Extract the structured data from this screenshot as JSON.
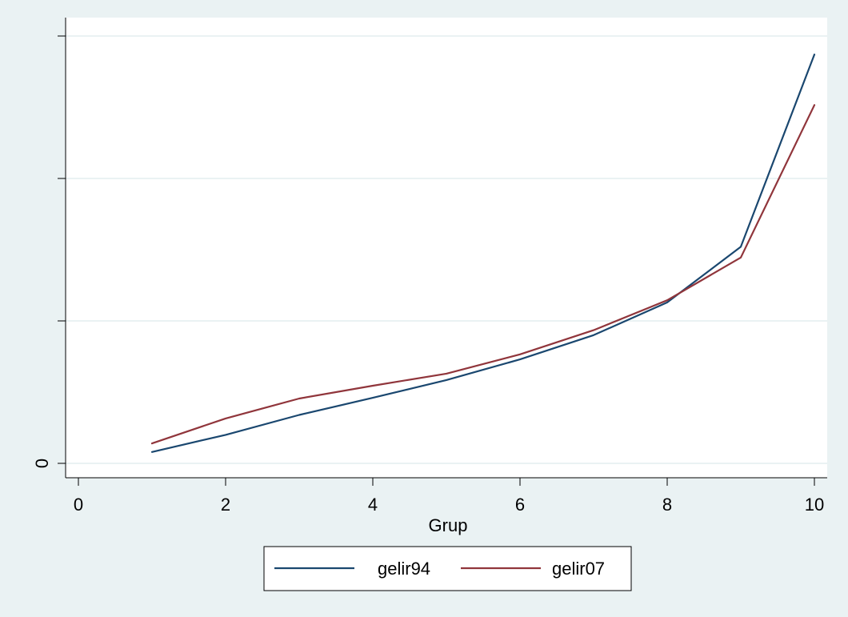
{
  "chart_data": {
    "type": "line",
    "title": "",
    "xlabel": "Grup",
    "ylabel": "",
    "x": [
      1,
      2,
      3,
      4,
      5,
      6,
      7,
      8,
      9,
      10
    ],
    "xlim": [
      0,
      10
    ],
    "ylim": [
      0,
      30
    ],
    "x_ticks": [
      0,
      2,
      4,
      6,
      8,
      10
    ],
    "x_tick_labels": [
      "0",
      "2",
      "4",
      "6",
      "8",
      "10"
    ],
    "y_ticks": [
      0,
      10,
      20,
      30
    ],
    "y_tick_labels": [
      "0",
      "",
      "",
      ""
    ],
    "grid": "horizontal",
    "legend_position": "bottom",
    "series": [
      {
        "name": "gelir94",
        "color": "#1a476f",
        "values": [
          0.8,
          2.0,
          3.4,
          4.6,
          5.85,
          7.3,
          9.0,
          11.3,
          15.2,
          28.7
        ]
      },
      {
        "name": "gelir07",
        "color": "#90353b",
        "values": [
          1.4,
          3.15,
          4.55,
          5.45,
          6.3,
          7.65,
          9.35,
          11.45,
          14.45,
          25.15
        ]
      }
    ]
  }
}
